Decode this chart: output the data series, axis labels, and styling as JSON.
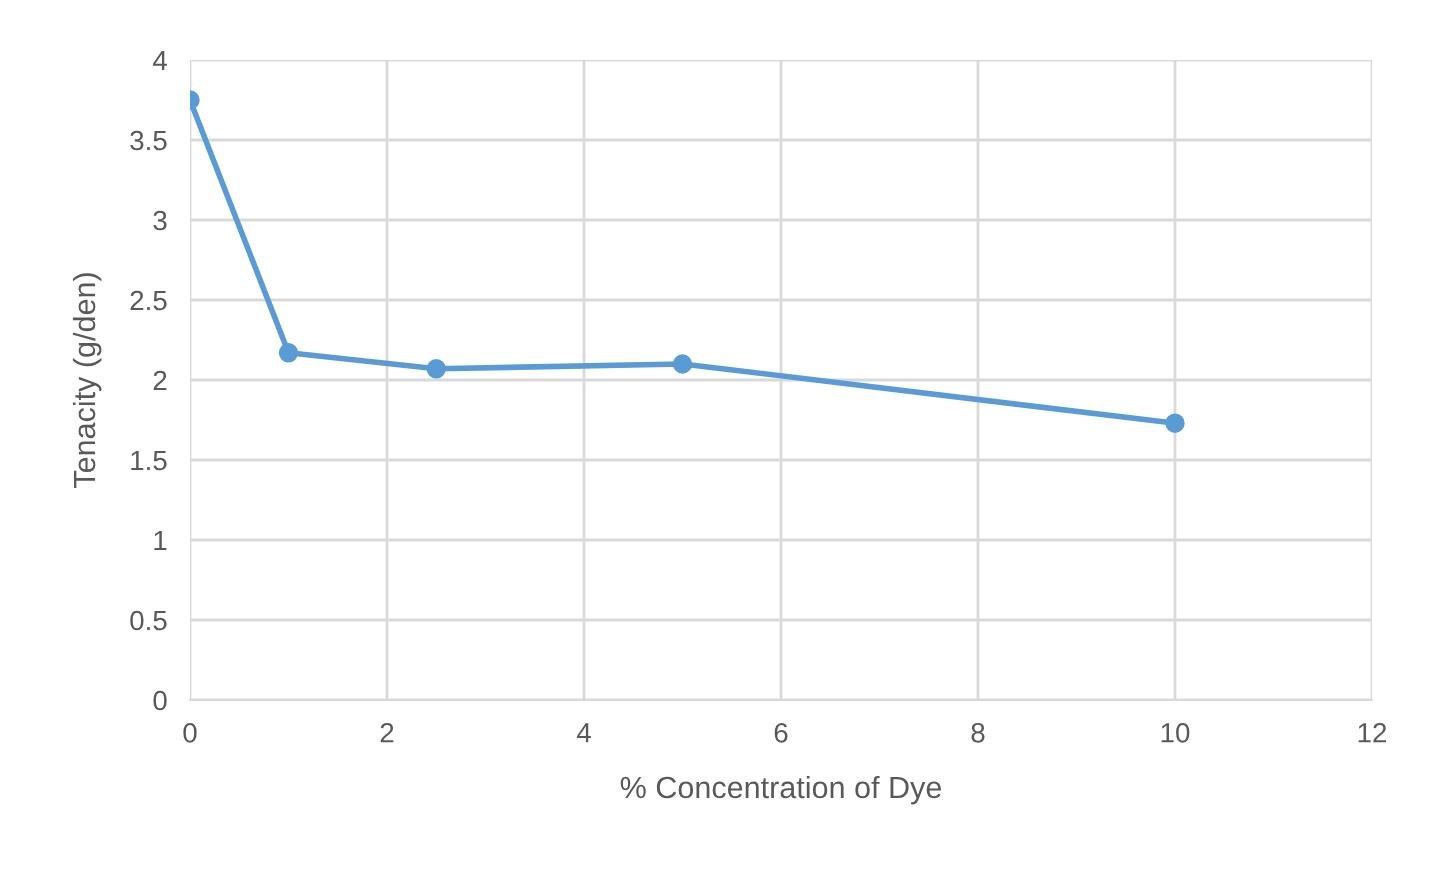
{
  "chart_data": {
    "type": "line",
    "xlabel": "% Concentration of Dye",
    "ylabel": "Tenacity (g/den)",
    "x": [
      0,
      1,
      2.5,
      5,
      10
    ],
    "series": [
      {
        "color": "#5b9bd5",
        "values": [
          3.75,
          2.17,
          2.07,
          2.1,
          1.73
        ]
      }
    ],
    "xlim": [
      0,
      12
    ],
    "xticks": [
      0,
      2,
      4,
      6,
      8,
      10,
      12
    ],
    "ylim": [
      0,
      4
    ],
    "yticks": [
      0,
      0.5,
      1,
      1.5,
      2,
      2.5,
      3,
      3.5,
      4
    ],
    "grid": true,
    "marker": "circle",
    "line_style": "solid"
  }
}
